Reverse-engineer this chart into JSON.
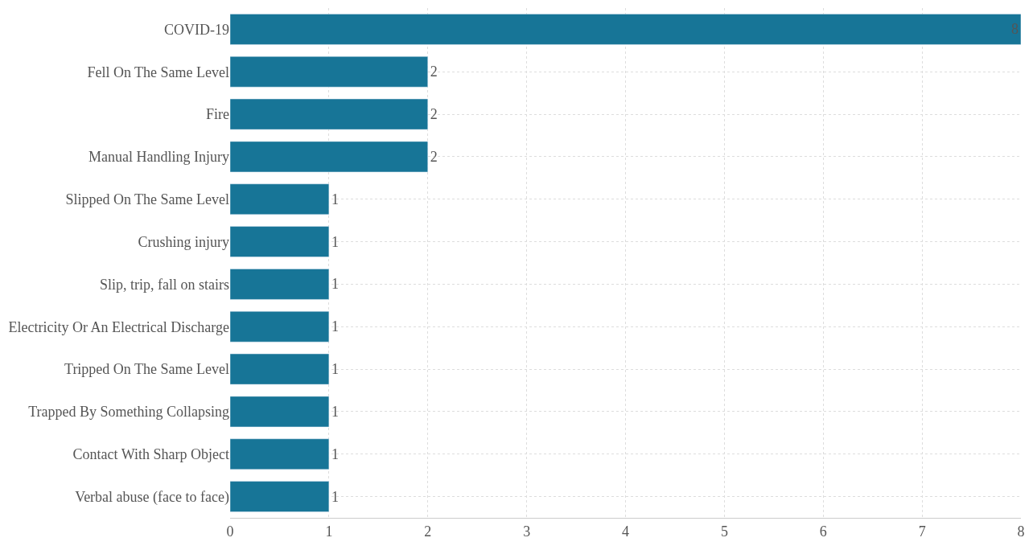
{
  "chart_data": {
    "type": "bar",
    "orientation": "horizontal",
    "categories": [
      "COVID-19",
      "Fell On The Same Level",
      "Fire",
      "Manual Handling Injury",
      "Slipped On The Same Level",
      "Crushing injury",
      "Slip, trip, fall on stairs",
      "Electricity Or An Electrical Discharge",
      "Tripped On The Same Level",
      "Trapped By Something Collapsing",
      "Contact With Sharp Object",
      "Verbal abuse (face to face)"
    ],
    "values": [
      8,
      2,
      2,
      2,
      1,
      1,
      1,
      1,
      1,
      1,
      1,
      1
    ],
    "color": "#177597",
    "xlim": [
      0,
      8
    ],
    "xticks": [
      0,
      1,
      2,
      3,
      4,
      5,
      6,
      7,
      8
    ],
    "grid": true,
    "data_labels": true,
    "legend": false
  }
}
